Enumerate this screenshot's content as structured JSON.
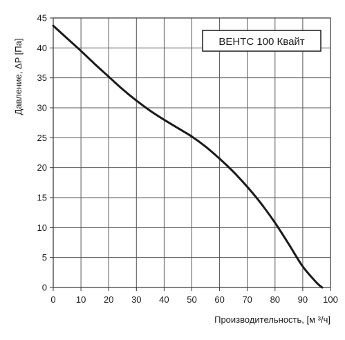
{
  "chart_data": {
    "type": "line",
    "title": "",
    "legend_box_label": "ВЕНТС 100 Квайт",
    "xlabel": "Производительность, [м ³/ч]",
    "ylabel": "Давление, ΔP [Па]",
    "xlim": [
      0,
      100
    ],
    "ylim": [
      0,
      45
    ],
    "x_ticks": [
      0,
      10,
      20,
      30,
      40,
      50,
      60,
      70,
      80,
      90,
      100
    ],
    "y_ticks": [
      0,
      5,
      10,
      15,
      20,
      25,
      30,
      35,
      40,
      45
    ],
    "x_tick_labels": [
      "0",
      "10",
      "20",
      "30",
      "40",
      "50",
      "60",
      "70",
      "80",
      "90",
      "100"
    ],
    "y_tick_labels": [
      "0",
      "5",
      "10",
      "15",
      "20",
      "25",
      "30",
      "35",
      "40",
      "45"
    ],
    "grid": true,
    "legend_placement": "top-right",
    "series": [
      {
        "name": "ВЕНТС 100 Квайт",
        "color": "#1a1a1a",
        "x": [
          0,
          5,
          10,
          15,
          20,
          25,
          30,
          35,
          40,
          45,
          50,
          55,
          60,
          65,
          70,
          75,
          80,
          85,
          90,
          95,
          97
        ],
        "y": [
          43.7,
          41.6,
          39.5,
          37.3,
          35.2,
          33.1,
          31.2,
          29.5,
          28.0,
          26.6,
          25.2,
          23.5,
          21.5,
          19.3,
          16.8,
          14.0,
          10.8,
          7.2,
          3.5,
          0.8,
          0
        ]
      }
    ]
  }
}
